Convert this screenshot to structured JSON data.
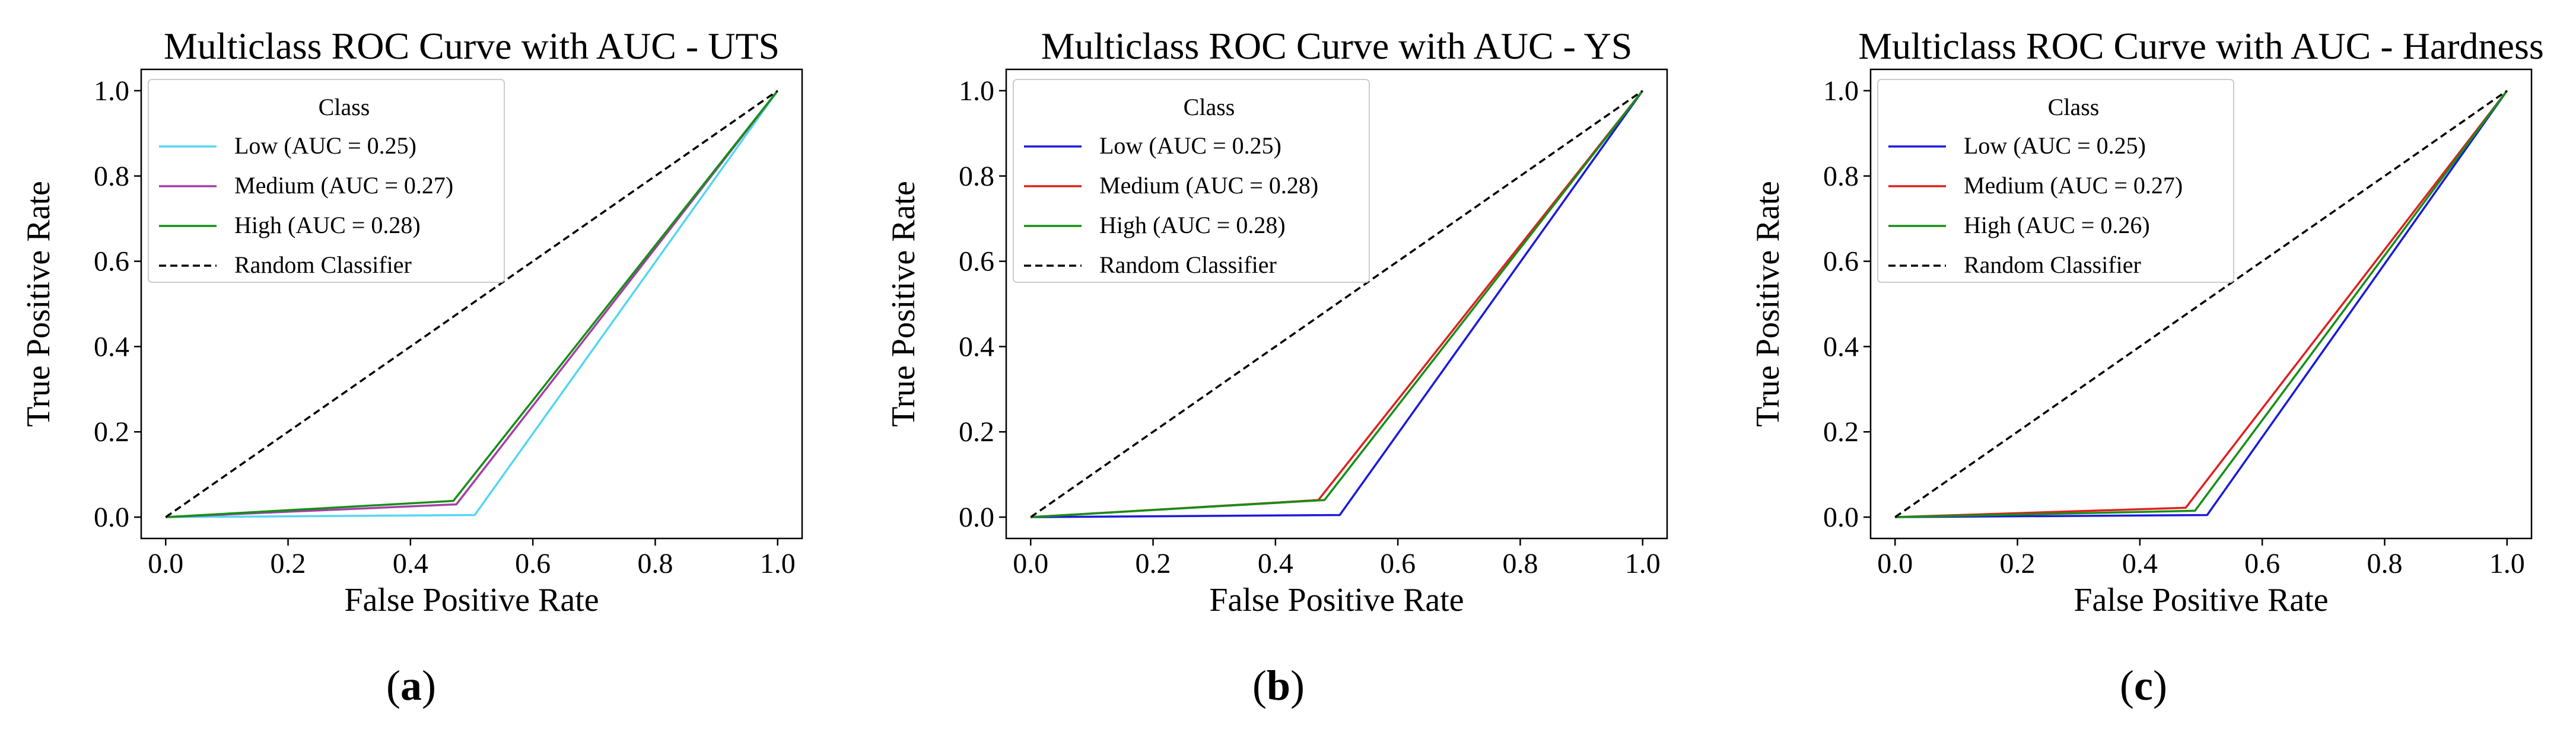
{
  "chart_data": [
    {
      "type": "line",
      "title": "Multiclass ROC Curve with AUC - UTS",
      "xlabel": "False Positive Rate",
      "ylabel": "True Positive Rate",
      "xlim": [
        -0.04,
        1.04
      ],
      "ylim": [
        -0.05,
        1.05
      ],
      "xticks": [
        "0.0",
        "0.2",
        "0.4",
        "0.6",
        "0.8",
        "1.0"
      ],
      "yticks": [
        "0.0",
        "0.2",
        "0.4",
        "0.6",
        "0.8",
        "1.0"
      ],
      "legend_title": "Class",
      "legend_position": "upper-left",
      "panel_label": {
        "open": "(",
        "letter": "a",
        "close": ")"
      },
      "series": [
        {
          "name": "Low (AUC = 0.25)",
          "color": "#56d6f2",
          "dash": "solid",
          "x": [
            0.0,
            0.505,
            1.0
          ],
          "y": [
            0.0,
            0.005,
            1.0
          ]
        },
        {
          "name": "Medium (AUC = 0.27)",
          "color": "#a43fa8",
          "dash": "solid",
          "x": [
            0.0,
            0.475,
            1.0
          ],
          "y": [
            0.0,
            0.03,
            1.0
          ]
        },
        {
          "name": "High (AUC = 0.28)",
          "color": "#168f16",
          "dash": "solid",
          "x": [
            0.0,
            0.47,
            1.0
          ],
          "y": [
            0.0,
            0.038,
            1.0
          ]
        },
        {
          "name": "Random Classifier",
          "color": "#000000",
          "dash": "dashed",
          "x": [
            0.0,
            1.0
          ],
          "y": [
            0.0,
            1.0
          ]
        }
      ]
    },
    {
      "type": "line",
      "title": "Multiclass ROC Curve with AUC - YS",
      "xlabel": "False Positive Rate",
      "ylabel": "True Positive Rate",
      "xlim": [
        -0.04,
        1.04
      ],
      "ylim": [
        -0.05,
        1.05
      ],
      "xticks": [
        "0.0",
        "0.2",
        "0.4",
        "0.6",
        "0.8",
        "1.0"
      ],
      "yticks": [
        "0.0",
        "0.2",
        "0.4",
        "0.6",
        "0.8",
        "1.0"
      ],
      "legend_title": "Class",
      "legend_position": "upper-left",
      "panel_label": {
        "open": "(",
        "letter": "b",
        "close": ")"
      },
      "series": [
        {
          "name": "Low (AUC = 0.25)",
          "color": "#1a1adb",
          "dash": "solid",
          "x": [
            0.0,
            0.505,
            1.0
          ],
          "y": [
            0.0,
            0.005,
            1.0
          ]
        },
        {
          "name": "Medium (AUC = 0.28)",
          "color": "#e02020",
          "dash": "solid",
          "x": [
            0.0,
            0.47,
            1.0
          ],
          "y": [
            0.0,
            0.04,
            1.0
          ]
        },
        {
          "name": "High (AUC = 0.28)",
          "color": "#168f16",
          "dash": "solid",
          "x": [
            0.0,
            0.48,
            1.0
          ],
          "y": [
            0.0,
            0.04,
            1.0
          ]
        },
        {
          "name": "Random Classifier",
          "color": "#000000",
          "dash": "dashed",
          "x": [
            0.0,
            1.0
          ],
          "y": [
            0.0,
            1.0
          ]
        }
      ]
    },
    {
      "type": "line",
      "title": "Multiclass ROC Curve with AUC - Hardness",
      "xlabel": "False Positive Rate",
      "ylabel": "True Positive Rate",
      "xlim": [
        -0.04,
        1.04
      ],
      "ylim": [
        -0.05,
        1.05
      ],
      "xticks": [
        "0.0",
        "0.2",
        "0.4",
        "0.6",
        "0.8",
        "1.0"
      ],
      "yticks": [
        "0.0",
        "0.2",
        "0.4",
        "0.6",
        "0.8",
        "1.0"
      ],
      "legend_title": "Class",
      "legend_position": "upper-left",
      "panel_label": {
        "open": "(",
        "letter": "c",
        "close": ")"
      },
      "series": [
        {
          "name": "Low (AUC = 0.25)",
          "color": "#1a1adb",
          "dash": "solid",
          "x": [
            0.0,
            0.51,
            1.0
          ],
          "y": [
            0.0,
            0.005,
            1.0
          ]
        },
        {
          "name": "Medium (AUC = 0.27)",
          "color": "#e02020",
          "dash": "solid",
          "x": [
            0.0,
            0.475,
            1.0
          ],
          "y": [
            0.0,
            0.022,
            1.0
          ]
        },
        {
          "name": "High (AUC = 0.26)",
          "color": "#168f16",
          "dash": "solid",
          "x": [
            0.0,
            0.49,
            1.0
          ],
          "y": [
            0.0,
            0.015,
            1.0
          ]
        },
        {
          "name": "Random Classifier",
          "color": "#000000",
          "dash": "dashed",
          "x": [
            0.0,
            1.0
          ],
          "y": [
            0.0,
            1.0
          ]
        }
      ]
    }
  ]
}
